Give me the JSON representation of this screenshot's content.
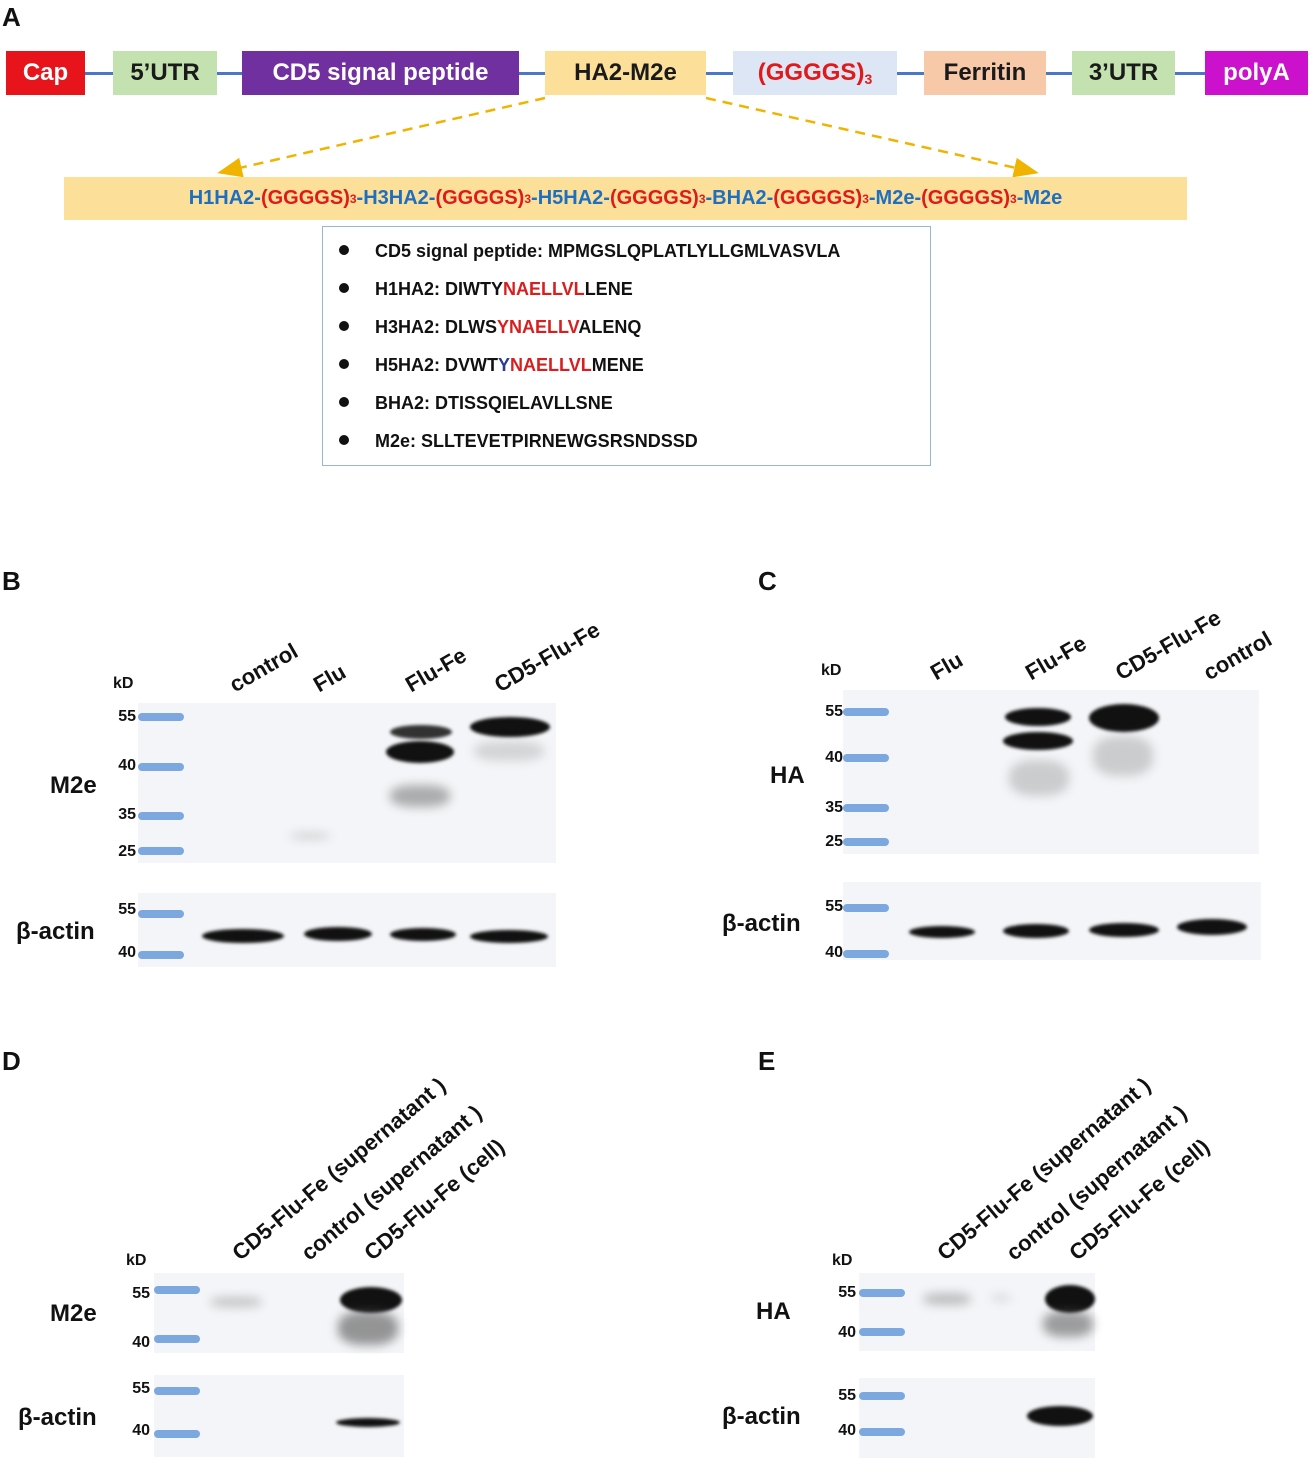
{
  "panels": {
    "a": "A",
    "b": "B",
    "c": "C",
    "d": "D",
    "e": "E"
  },
  "construct": {
    "elements": [
      {
        "label": "Cap",
        "bg": "#e8141c",
        "fg": "#ffffff"
      },
      {
        "label": "5’UTR",
        "bg": "#c3e2b0",
        "fg": "#1a1a1a"
      },
      {
        "label": "CD5 signal peptide",
        "bg": "#7030a0",
        "fg": "#ffffff"
      },
      {
        "label": "HA2-M2e",
        "bg": "#fce09a",
        "fg": "#1a1a1a"
      },
      {
        "label": "(GGGGS)",
        "sub": "3",
        "bg": "#dde6f4",
        "fg": "#e01a1a"
      },
      {
        "label": "Ferritin",
        "bg": "#f8c9a8",
        "fg": "#1a1a1a"
      },
      {
        "label": "3’UTR",
        "bg": "#c3e2b0",
        "fg": "#1a1a1a"
      },
      {
        "label": "polyA",
        "bg": "#cc11cc",
        "fg": "#ffffff"
      }
    ],
    "sequence_parts": [
      {
        "t": "H1HA2-",
        "c": "blue"
      },
      {
        "t": "(GGGGS)",
        "c": "red"
      },
      {
        "t": "3",
        "c": "red",
        "sub": true
      },
      {
        "t": "-H3HA2-",
        "c": "blue"
      },
      {
        "t": "(GGGGS)",
        "c": "red"
      },
      {
        "t": "3",
        "c": "red",
        "sub": true
      },
      {
        "t": "-H5HA2-",
        "c": "blue"
      },
      {
        "t": "(GGGGS)",
        "c": "red"
      },
      {
        "t": "3",
        "c": "red",
        "sub": true
      },
      {
        "t": "-BHA2-",
        "c": "blue"
      },
      {
        "t": "(GGGGS)",
        "c": "red"
      },
      {
        "t": "3",
        "c": "red",
        "sub": true
      },
      {
        "t": "-M2e-",
        "c": "blue"
      },
      {
        "t": "(GGGGS)",
        "c": "red"
      },
      {
        "t": "3",
        "c": "red",
        "sub": true
      },
      {
        "t": "-M2e",
        "c": "blue"
      }
    ],
    "info": [
      {
        "label": "CD5 signal peptide: ",
        "parts": [
          {
            "t": "MPMGSLQPLATLYLLGMLVASVLA",
            "c": ""
          }
        ]
      },
      {
        "label": "H1HA2: ",
        "parts": [
          {
            "t": "DIWTY",
            "c": ""
          },
          {
            "t": "NAELLVL",
            "c": "red"
          },
          {
            "t": "LENE",
            "c": ""
          }
        ]
      },
      {
        "label": "H3HA2: ",
        "parts": [
          {
            "t": "DLWS",
            "c": ""
          },
          {
            "t": "YNAELLV",
            "c": "red"
          },
          {
            "t": "ALENQ",
            "c": ""
          }
        ]
      },
      {
        "label": "H5HA2: ",
        "parts": [
          {
            "t": "DVWT",
            "c": ""
          },
          {
            "t": "Y",
            "c": "navy"
          },
          {
            "t": "NAELLVL",
            "c": "red"
          },
          {
            "t": "MENE",
            "c": ""
          }
        ]
      },
      {
        "label": "BHA2: ",
        "parts": [
          {
            "t": "DTISSQIELAVLLSNE",
            "c": ""
          }
        ]
      },
      {
        "label": "M2e: ",
        "parts": [
          {
            "t": "SLLTEVETPIRNEWGSRSNDSSD",
            "c": ""
          }
        ]
      }
    ]
  },
  "blots": {
    "kd": "kD",
    "b": {
      "lanes": [
        "control",
        "Flu",
        "Flu-Fe",
        "CD5-Flu-Fe"
      ],
      "top_label": "M2e",
      "bottom_label": "β-actin",
      "top_mw": [
        "55",
        "40",
        "35",
        "25"
      ],
      "bottom_mw": [
        "55",
        "40"
      ]
    },
    "c": {
      "lanes": [
        "Flu",
        "Flu-Fe",
        "CD5-Flu-Fe",
        "control"
      ],
      "top_label": "HA",
      "bottom_label": "β-actin",
      "top_mw": [
        "55",
        "40",
        "35",
        "25"
      ],
      "bottom_mw": [
        "55",
        "40"
      ]
    },
    "d": {
      "lanes": [
        "CD5-Flu-Fe (supernatant )",
        "control (supernatant )",
        "CD5-Flu-Fe (cell)"
      ],
      "top_label": "M2e",
      "bottom_label": "β-actin",
      "top_mw": [
        "55",
        "40"
      ],
      "bottom_mw": [
        "55",
        "40"
      ]
    },
    "e": {
      "lanes": [
        "CD5-Flu-Fe (supernatant )",
        "control (supernatant )",
        "CD5-Flu-Fe (cell)"
      ],
      "top_label": "HA",
      "bottom_label": "β-actin",
      "top_mw": [
        "55",
        "40"
      ],
      "bottom_mw": [
        "55",
        "40"
      ]
    }
  }
}
